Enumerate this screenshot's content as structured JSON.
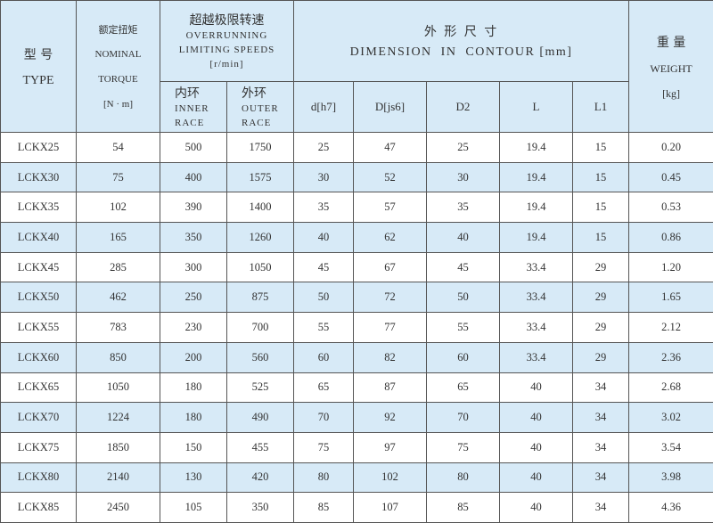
{
  "header": {
    "type": {
      "cn": "型 号",
      "en": "TYPE"
    },
    "torque": {
      "cn": "额定扭矩",
      "en1": "NOMINAL",
      "en2": "TORQUE",
      "unit": "[N · m]"
    },
    "speeds": {
      "cn": "超越极限转速",
      "en1": "OVERRUNNING",
      "en2": "LIMITING SPEEDS",
      "unit": "[r/min]",
      "inner": {
        "cn": "内环",
        "en1": "INNER",
        "en2": "RACE"
      },
      "outer": {
        "cn": "外环",
        "en1": "OUTER",
        "en2": "RACE"
      }
    },
    "dimension": {
      "cn": "外 形 尺 寸",
      "en": "DIMENSION  IN  CONTOUR [mm]",
      "cols": [
        "d[h7]",
        "D[js6]",
        "D2",
        "L",
        "L1"
      ]
    },
    "weight": {
      "cn": "重 量",
      "en": "WEIGHT",
      "unit": "[kg]"
    }
  },
  "rows": [
    [
      "LCKX25",
      "54",
      "500",
      "1750",
      "25",
      "47",
      "25",
      "19.4",
      "15",
      "0.20"
    ],
    [
      "LCKX30",
      "75",
      "400",
      "1575",
      "30",
      "52",
      "30",
      "19.4",
      "15",
      "0.45"
    ],
    [
      "LCKX35",
      "102",
      "390",
      "1400",
      "35",
      "57",
      "35",
      "19.4",
      "15",
      "0.53"
    ],
    [
      "LCKX40",
      "165",
      "350",
      "1260",
      "40",
      "62",
      "40",
      "19.4",
      "15",
      "0.86"
    ],
    [
      "LCKX45",
      "285",
      "300",
      "1050",
      "45",
      "67",
      "45",
      "33.4",
      "29",
      "1.20"
    ],
    [
      "LCKX50",
      "462",
      "250",
      "875",
      "50",
      "72",
      "50",
      "33.4",
      "29",
      "1.65"
    ],
    [
      "LCKX55",
      "783",
      "230",
      "700",
      "55",
      "77",
      "55",
      "33.4",
      "29",
      "2.12"
    ],
    [
      "LCKX60",
      "850",
      "200",
      "560",
      "60",
      "82",
      "60",
      "33.4",
      "29",
      "2.36"
    ],
    [
      "LCKX65",
      "1050",
      "180",
      "525",
      "65",
      "87",
      "65",
      "40",
      "34",
      "2.68"
    ],
    [
      "LCKX70",
      "1224",
      "180",
      "490",
      "70",
      "92",
      "70",
      "40",
      "34",
      "3.02"
    ],
    [
      "LCKX75",
      "1850",
      "150",
      "455",
      "75",
      "97",
      "75",
      "40",
      "34",
      "3.54"
    ],
    [
      "LCKX80",
      "2140",
      "130",
      "420",
      "80",
      "102",
      "80",
      "40",
      "34",
      "3.98"
    ],
    [
      "LCKX85",
      "2450",
      "105",
      "350",
      "85",
      "107",
      "85",
      "40",
      "34",
      "4.36"
    ]
  ],
  "colors": {
    "header_bg": "#d7eaf7",
    "stripe_bg": "#d7eaf7",
    "border": "#555555"
  }
}
